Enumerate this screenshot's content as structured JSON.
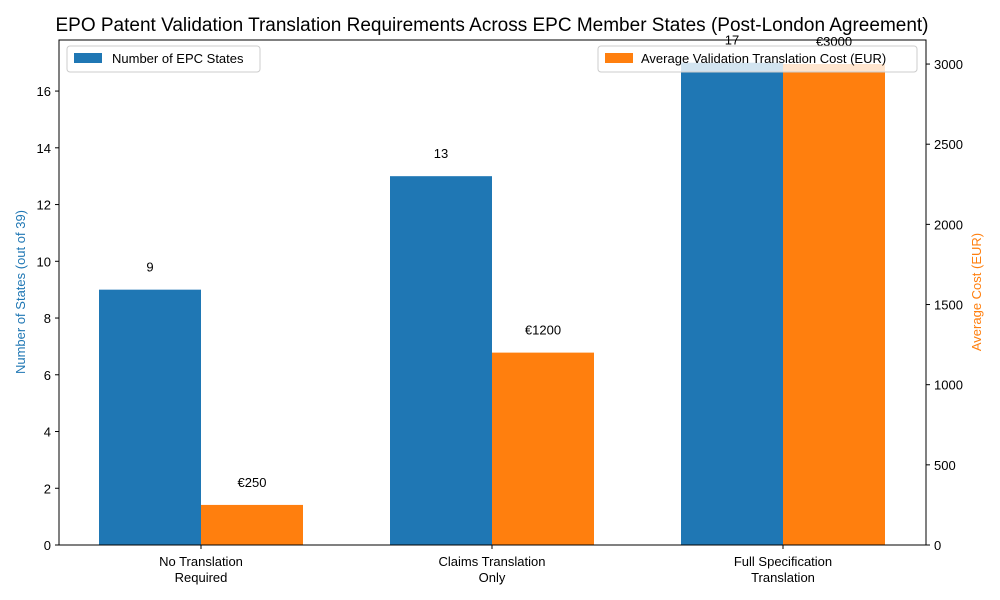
{
  "chart_data": {
    "type": "bar",
    "title": "EPO Patent Validation Translation Requirements Across EPC Member States (Post-London Agreement)",
    "xlabel": "",
    "ylabel": "Number of States (out of 39)",
    "ylabel_right": "Average Cost (EUR)",
    "categories": [
      "No Translation\nRequired",
      "Claims Translation\nOnly",
      "Full Specification\nTranslation"
    ],
    "category_lines": [
      [
        "No Translation",
        "Required"
      ],
      [
        "Claims Translation",
        "Only"
      ],
      [
        "Full Specification",
        "Translation"
      ]
    ],
    "series": [
      {
        "name": "Number of EPC States",
        "axis": "left",
        "color": "#1f77b4",
        "values": [
          9,
          13,
          17
        ],
        "labels": [
          "9",
          "13",
          "17"
        ]
      },
      {
        "name": "Average Validation Translation Cost (EUR)",
        "axis": "right",
        "color": "#ff7f0e",
        "values": [
          250,
          1200,
          3000
        ],
        "labels": [
          "€250",
          "€1200",
          "€3000"
        ]
      }
    ],
    "ylim": [
      0,
      17.8
    ],
    "ylim_right": [
      0,
      3150
    ],
    "yticks": [
      0,
      2,
      4,
      6,
      8,
      10,
      12,
      14,
      16
    ],
    "yticks_right": [
      0,
      500,
      1000,
      1500,
      2000,
      2500,
      3000
    ],
    "grid": false,
    "legend": [
      {
        "label": "Number of EPC States",
        "position": "upper left"
      },
      {
        "label": "Average Validation Translation Cost (EUR)",
        "position": "upper right"
      }
    ]
  },
  "colors": {
    "left_axis_label": "#1f77b4",
    "right_axis_label": "#ff7f0e"
  }
}
